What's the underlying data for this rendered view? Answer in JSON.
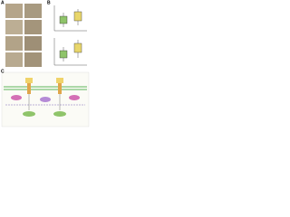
{
  "panels": {
    "a": {
      "label": "A"
    },
    "b": {
      "label": "B"
    },
    "c": {
      "label": "C"
    }
  }
}
